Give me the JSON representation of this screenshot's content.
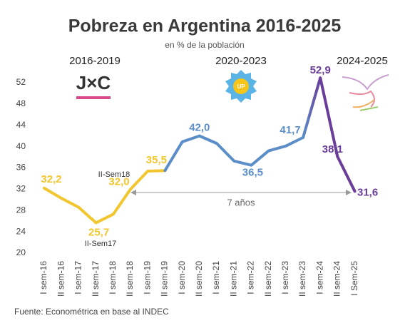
{
  "chart_data": {
    "type": "line",
    "title": "Pobreza en Argentina 2016-2025",
    "subtitle": "en % de la población",
    "source": "Fuente: Econométrica en base al INDEC",
    "jxc_logo": "J×C",
    "up_logo": "UP",
    "categories": [
      "I sem-16",
      "II sem-16",
      "I sem-17",
      "II sem-17",
      "I sem-18",
      "II sem-18",
      "I sem-19",
      "II sem-19",
      "I sem-20",
      "II sem-20",
      "I sem-21",
      "II sem-21",
      "I sem-22",
      "II sem-22",
      "I sem-23",
      "II sem-23",
      "I sem-24",
      "II sem-24",
      "I Sem-25"
    ],
    "series": [
      {
        "name": "2016-2019",
        "color": "#f2c62f",
        "values": [
          32.2,
          30.3,
          28.6,
          25.7,
          27.3,
          32.0,
          35.4,
          35.5,
          null,
          null,
          null,
          null,
          null,
          null,
          null,
          null,
          null,
          null,
          null
        ],
        "value_labels": [
          "32,2",
          null,
          null,
          "25,7",
          null,
          "32,0",
          null,
          "35,5",
          null,
          null,
          null,
          null,
          null,
          null,
          null,
          null,
          null,
          null,
          null
        ]
      },
      {
        "name": "2020-2023",
        "color": "#5b8ec9",
        "values": [
          null,
          null,
          null,
          null,
          null,
          null,
          null,
          35.5,
          40.9,
          42.0,
          40.6,
          37.3,
          36.5,
          39.2,
          40.1,
          41.7,
          null,
          null,
          null
        ],
        "value_labels": [
          null,
          null,
          null,
          null,
          null,
          null,
          null,
          null,
          null,
          "42,0",
          null,
          null,
          "36,5",
          null,
          null,
          "41,7",
          null,
          null,
          null
        ]
      },
      {
        "name": "2024-2025",
        "color": "#6a3d9a",
        "values": [
          null,
          null,
          null,
          null,
          null,
          null,
          null,
          null,
          null,
          null,
          null,
          null,
          null,
          null,
          null,
          41.7,
          52.9,
          38.1,
          31.6
        ],
        "value_labels": [
          null,
          null,
          null,
          null,
          null,
          null,
          null,
          null,
          null,
          null,
          null,
          null,
          null,
          null,
          null,
          null,
          "52,9",
          "38,1",
          "31,6"
        ]
      }
    ],
    "annotations": [
      "II-Sem17",
      "II-Sem18",
      "7 años"
    ],
    "ylim": [
      20,
      54
    ],
    "yticks": [
      20,
      24,
      28,
      32,
      36,
      40,
      44,
      48,
      52
    ],
    "grid": false
  }
}
